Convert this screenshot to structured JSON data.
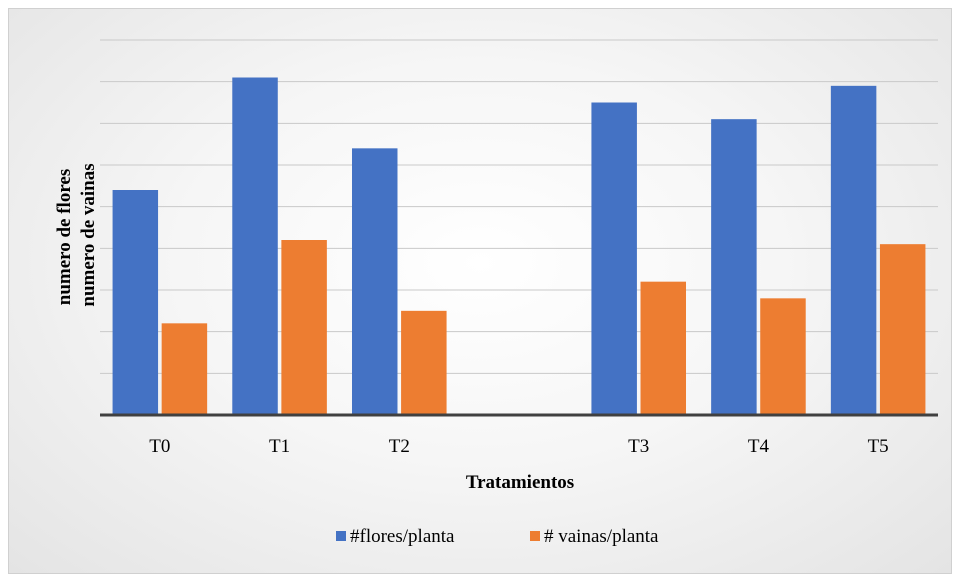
{
  "chart_data": {
    "type": "bar",
    "categories": [
      "T0",
      "T1",
      "T2",
      "",
      "T3",
      "T4",
      "T5"
    ],
    "series": [
      {
        "name": "#flores/planta",
        "color": "#4472c4",
        "values": [
          5.4,
          8.1,
          6.4,
          null,
          7.5,
          7.1,
          7.9
        ]
      },
      {
        "name": "# vainas/planta",
        "color": "#ed7d31",
        "values": [
          2.2,
          4.2,
          2.5,
          null,
          3.2,
          2.8,
          4.1
        ]
      }
    ],
    "xlabel": "Tratamientos",
    "ylabel_lines": [
      "numero de flores",
      "numero de vainas"
    ],
    "ylim": [
      0,
      9
    ],
    "grid": true,
    "legend_position": "bottom"
  }
}
